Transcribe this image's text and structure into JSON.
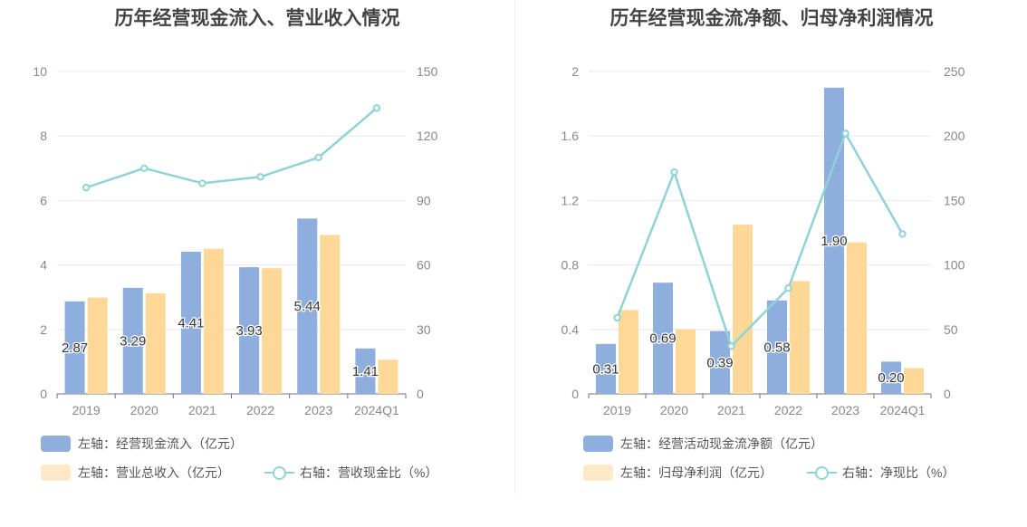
{
  "charts": [
    {
      "title": "历年经营现金流入、营业收入情况",
      "legend": {
        "bar1": "左轴：经营现金流入（亿元）",
        "bar2": "左轴：营业总收入（亿元）",
        "line": "右轴：营收现金比（%）"
      }
    },
    {
      "title": "历年经营现金流净额、归母净利润情况",
      "legend": {
        "bar1": "左轴：经营活动现金流净额（亿元）",
        "bar2": "左轴：归母净利润（亿元）",
        "line": "右轴：净现比（%）"
      }
    }
  ],
  "colors": {
    "bar1": "#8eaedd",
    "bar2": "#ffd898",
    "legend_bar2": "#fde8c8",
    "line": "#8fd3d8",
    "grid": "#e6e8f0",
    "axis": "#888888"
  },
  "chart_data": [
    {
      "type": "bar",
      "categories": [
        "2019",
        "2020",
        "2021",
        "2022",
        "2023",
        "2024Q1"
      ],
      "series": [
        {
          "name": "左轴：经营现金流入（亿元）",
          "axis": "left",
          "values": [
            2.87,
            3.29,
            4.41,
            3.93,
            5.44,
            1.41
          ],
          "labels": [
            "2.87",
            "3.29",
            "4.41",
            "3.93",
            "5.44",
            "1.41"
          ]
        },
        {
          "name": "左轴：营业总收入（亿元）",
          "axis": "left",
          "values": [
            2.99,
            3.12,
            4.5,
            3.9,
            4.93,
            1.06
          ]
        },
        {
          "name": "右轴：营收现金比（%）",
          "axis": "right",
          "type": "line",
          "values": [
            96,
            105,
            98,
            101,
            110,
            133
          ]
        }
      ],
      "left_axis": {
        "min": 0,
        "max": 10,
        "ticks": [
          "0",
          "2",
          "4",
          "6",
          "8",
          "10"
        ]
      },
      "right_axis": {
        "min": 0,
        "max": 150,
        "ticks": [
          "0",
          "30",
          "60",
          "90",
          "120",
          "150"
        ]
      },
      "grid": true,
      "legend_position": "bottom"
    },
    {
      "type": "bar",
      "categories": [
        "2019",
        "2020",
        "2021",
        "2022",
        "2023",
        "2024Q1"
      ],
      "series": [
        {
          "name": "左轴：经营活动现金流净额（亿元）",
          "axis": "left",
          "values": [
            0.31,
            0.69,
            0.39,
            0.58,
            1.9,
            0.2
          ],
          "labels": [
            "0.31",
            "0.69",
            "0.39",
            "0.58",
            "1.90",
            "0.20"
          ]
        },
        {
          "name": "左轴：归母净利润（亿元）",
          "axis": "left",
          "values": [
            0.52,
            0.4,
            1.05,
            0.7,
            0.94,
            0.16
          ]
        },
        {
          "name": "右轴：净现比（%）",
          "axis": "right",
          "type": "line",
          "values": [
            59,
            172,
            37,
            82,
            202,
            124
          ]
        }
      ],
      "left_axis": {
        "min": 0,
        "max": 2,
        "ticks": [
          "0",
          "0.4",
          "0.8",
          "1.2",
          "1.6",
          "2"
        ]
      },
      "right_axis": {
        "min": 0,
        "max": 250,
        "ticks": [
          "0",
          "50",
          "100",
          "150",
          "200",
          "250"
        ]
      },
      "grid": true,
      "legend_position": "bottom"
    }
  ]
}
